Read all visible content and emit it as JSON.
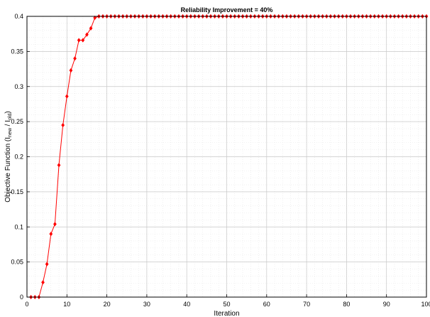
{
  "chart_data": {
    "type": "line",
    "title": "Reliability Improvement = 40%",
    "xlabel": "Iteration",
    "ylabel": "Objective Function (I",
    "ylabel_sub1": "new",
    "ylabel_mid": " / I",
    "ylabel_sub2": "old",
    "ylabel_end": ")",
    "xlim": [
      0,
      100
    ],
    "ylim": [
      0,
      0.4
    ],
    "xticks": [
      0,
      10,
      20,
      30,
      40,
      50,
      60,
      70,
      80,
      90,
      100
    ],
    "yticks": [
      0,
      0.05,
      0.1,
      0.15,
      0.2,
      0.25,
      0.3,
      0.35,
      0.4
    ],
    "xtick_labels": [
      "0",
      "10",
      "20",
      "30",
      "40",
      "50",
      "60",
      "70",
      "80",
      "90",
      "100"
    ],
    "ytick_labels": [
      "0",
      "0.05",
      "0.1",
      "0.15",
      "0.2",
      "0.25",
      "0.3",
      "0.35",
      "0.4"
    ],
    "grid": true,
    "minor_grid": true,
    "color": "#ff0000",
    "marker": "diamond",
    "x": [
      1,
      2,
      3,
      4,
      5,
      6,
      7,
      8,
      9,
      10,
      11,
      12,
      13,
      14,
      15,
      16,
      17,
      18,
      19,
      20,
      21,
      22,
      23,
      24,
      25,
      26,
      27,
      28,
      29,
      30,
      31,
      32,
      33,
      34,
      35,
      36,
      37,
      38,
      39,
      40,
      41,
      42,
      43,
      44,
      45,
      46,
      47,
      48,
      49,
      50,
      51,
      52,
      53,
      54,
      55,
      56,
      57,
      58,
      59,
      60,
      61,
      62,
      63,
      64,
      65,
      66,
      67,
      68,
      69,
      70,
      71,
      72,
      73,
      74,
      75,
      76,
      77,
      78,
      79,
      80,
      81,
      82,
      83,
      84,
      85,
      86,
      87,
      88,
      89,
      90,
      91,
      92,
      93,
      94,
      95,
      96,
      97,
      98,
      99,
      100
    ],
    "y": [
      0,
      0,
      0,
      0.021,
      0.047,
      0.09,
      0.104,
      0.188,
      0.245,
      0.286,
      0.323,
      0.34,
      0.366,
      0.366,
      0.374,
      0.383,
      0.398,
      0.4,
      0.4,
      0.4,
      0.4,
      0.4,
      0.4,
      0.4,
      0.4,
      0.4,
      0.4,
      0.4,
      0.4,
      0.4,
      0.4,
      0.4,
      0.4,
      0.4,
      0.4,
      0.4,
      0.4,
      0.4,
      0.4,
      0.4,
      0.4,
      0.4,
      0.4,
      0.4,
      0.4,
      0.4,
      0.4,
      0.4,
      0.4,
      0.4,
      0.4,
      0.4,
      0.4,
      0.4,
      0.4,
      0.4,
      0.4,
      0.4,
      0.4,
      0.4,
      0.4,
      0.4,
      0.4,
      0.4,
      0.4,
      0.4,
      0.4,
      0.4,
      0.4,
      0.4,
      0.4,
      0.4,
      0.4,
      0.4,
      0.4,
      0.4,
      0.4,
      0.4,
      0.4,
      0.4,
      0.4,
      0.4,
      0.4,
      0.4,
      0.4,
      0.4,
      0.4,
      0.4,
      0.4,
      0.4,
      0.4,
      0.4,
      0.4,
      0.4,
      0.4,
      0.4,
      0.4,
      0.4,
      0.4,
      0.4
    ]
  }
}
